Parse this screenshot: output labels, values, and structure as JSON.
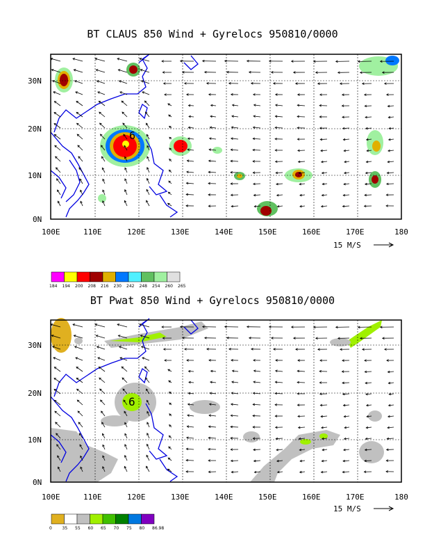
{
  "panel1": {
    "title": "BT CLAUS 850 Wind + Gyrelocs 950810/0000",
    "x_labels": [
      "100E",
      "110E",
      "120E",
      "130E",
      "140E",
      "150E",
      "160E",
      "170E",
      "180"
    ],
    "y_labels": [
      "30N",
      "20N",
      "10N",
      "0N"
    ],
    "vector_ref": "15 M/S",
    "storm_marker": "6",
    "legend": {
      "labels": [
        "184",
        "194",
        "200",
        "208",
        "216",
        "230",
        "242",
        "248",
        "254",
        "260",
        "265"
      ],
      "colors": [
        "#ff00ff",
        "#ffff00",
        "#ff0000",
        "#a00000",
        "#e0b000",
        "#0078ff",
        "#50f0ff",
        "#60c060",
        "#a0f0a0",
        "#e0e0e0"
      ]
    }
  },
  "panel2": {
    "title": "BT Pwat 850 Wind + Gyrelocs 950810/0000",
    "x_labels": [
      "100E",
      "110E",
      "120E",
      "130E",
      "140E",
      "150E",
      "160E",
      "170E",
      "180"
    ],
    "y_labels": [
      "30N",
      "20N",
      "10N",
      "0N"
    ],
    "vector_ref": "15 M/S",
    "storm_marker": "6",
    "legend": {
      "labels": [
        "0",
        "35",
        "55",
        "60",
        "65",
        "70",
        "75",
        "80",
        "86.98"
      ],
      "colors": [
        "#e0b020",
        "#ffffff",
        "#c0c0c0",
        "#a0f000",
        "#40c000",
        "#008000",
        "#0078e0",
        "#8000c0"
      ]
    }
  }
}
